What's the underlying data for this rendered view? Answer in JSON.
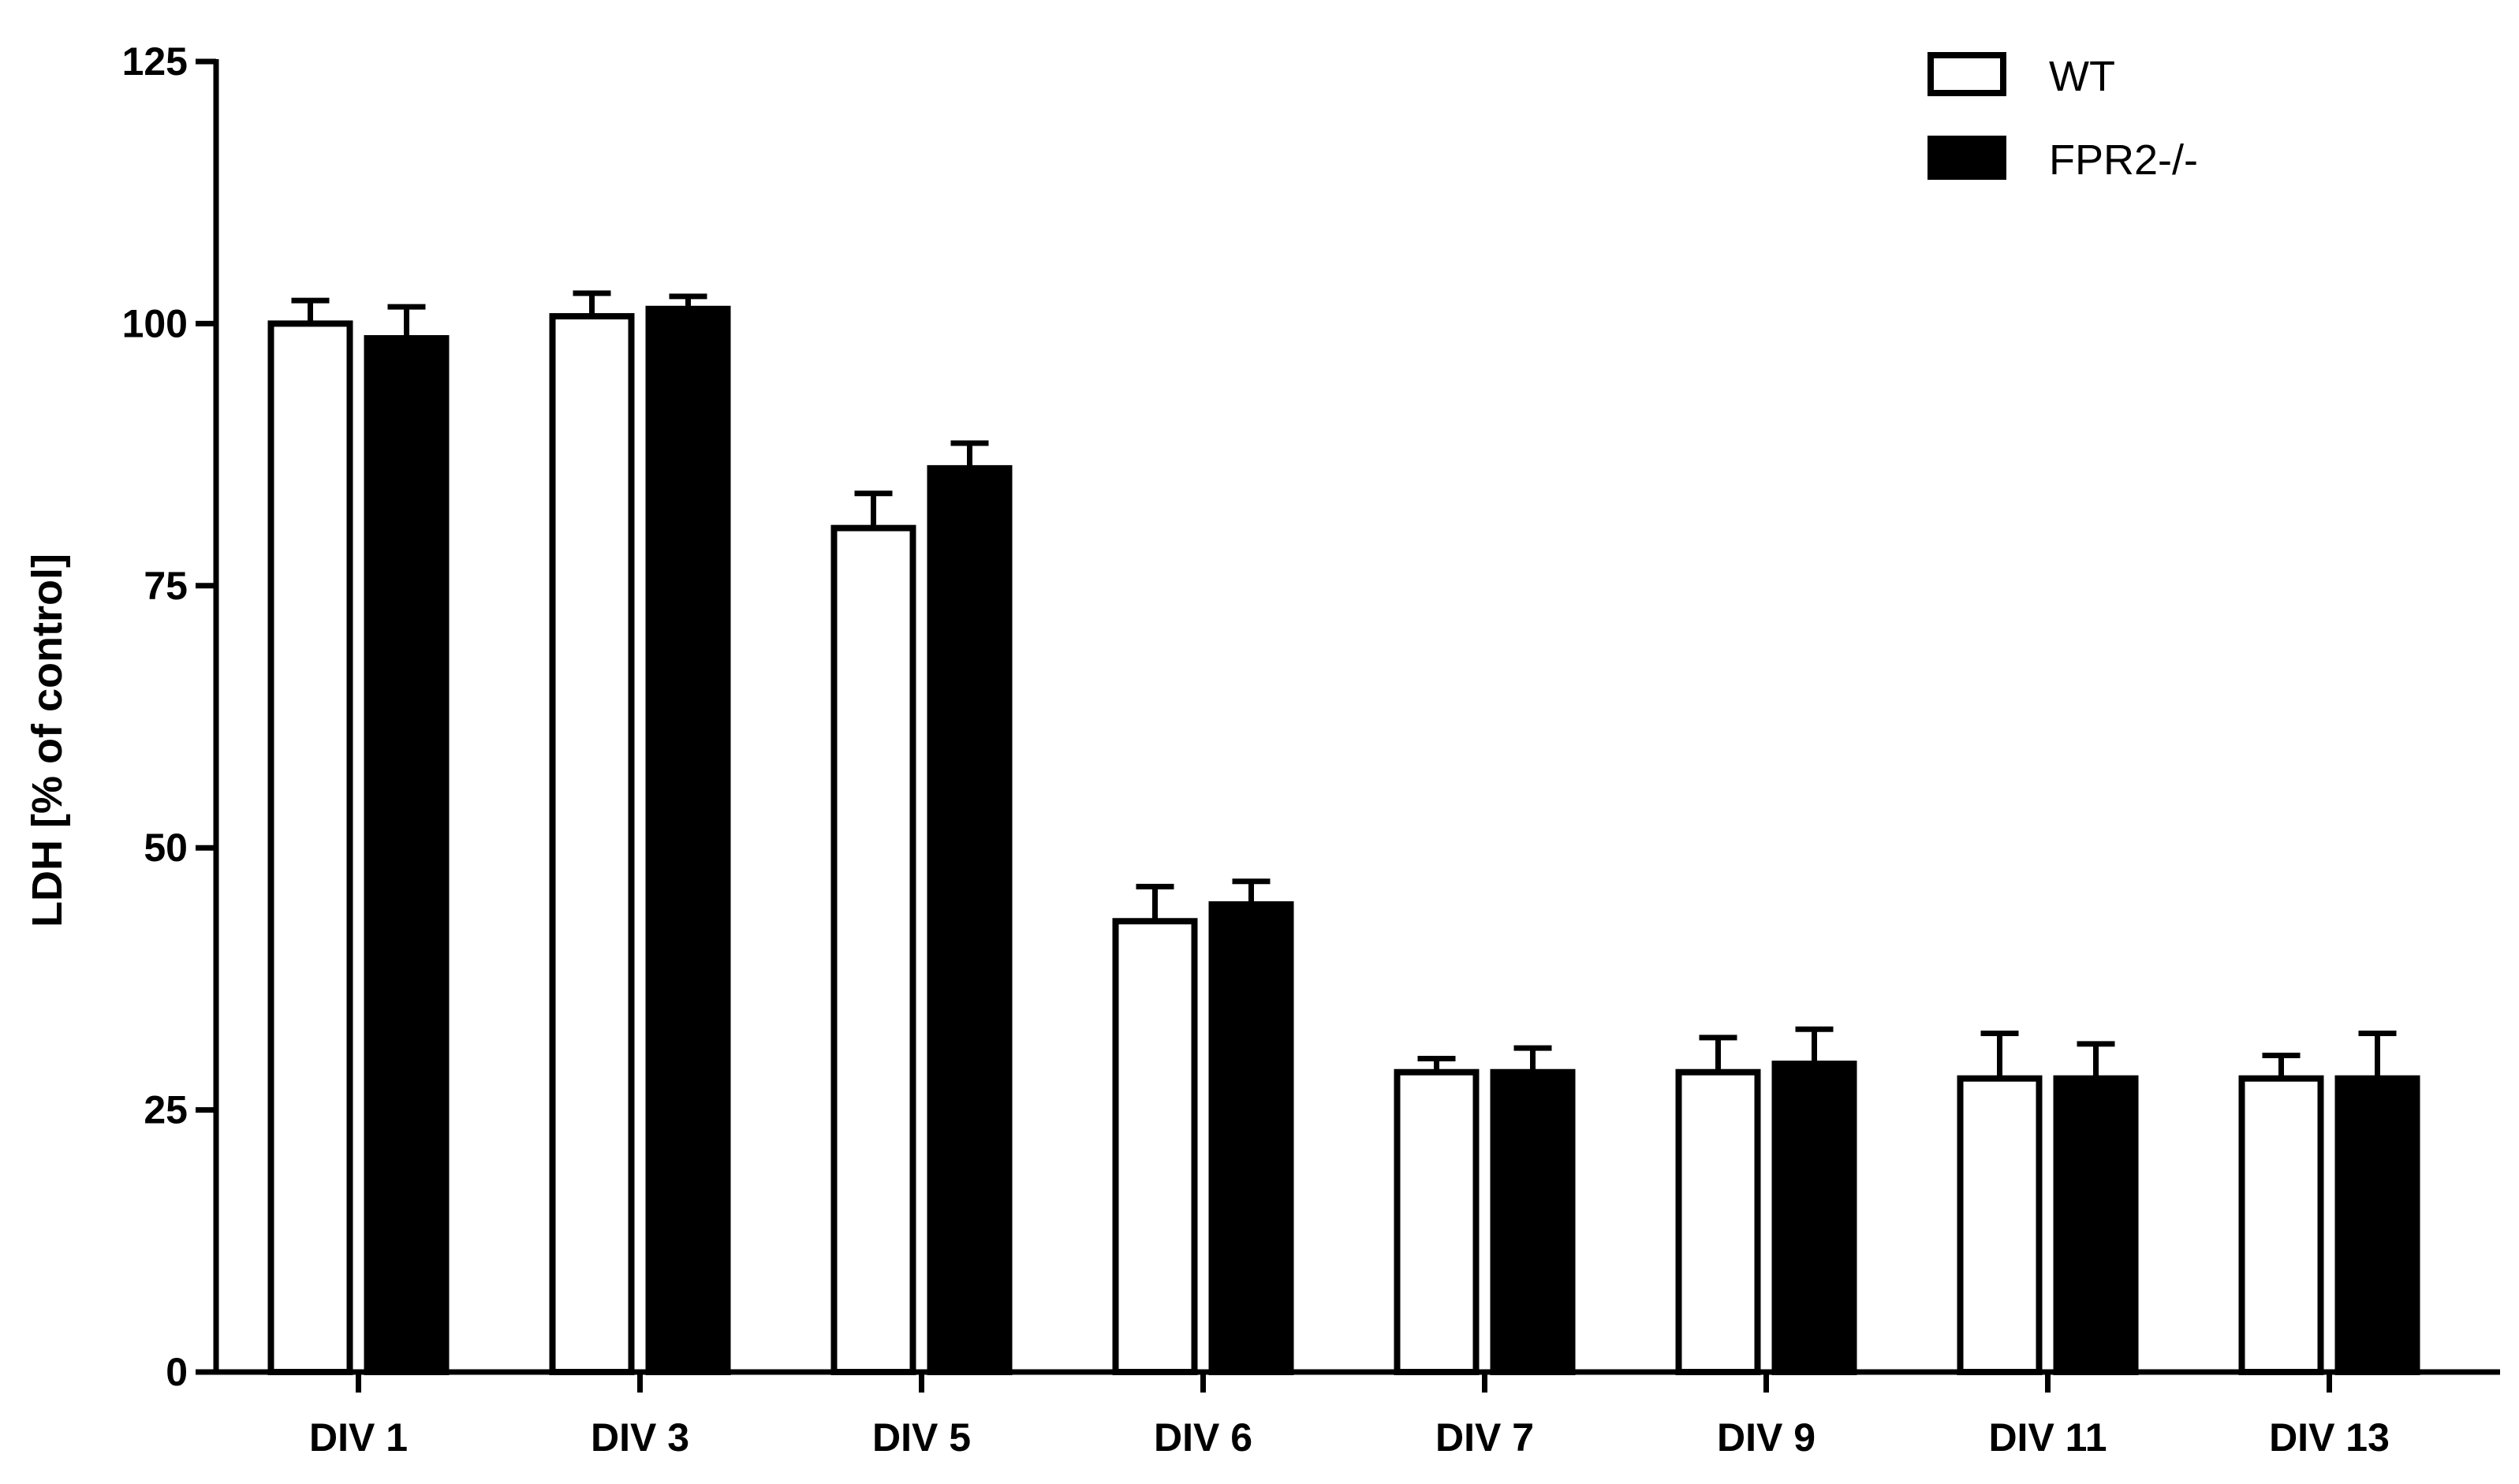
{
  "chart_data": {
    "type": "bar",
    "title": "",
    "xlabel": "",
    "ylabel": "LDH [% of control]",
    "ylim": [
      0,
      125
    ],
    "yticks": [
      0,
      25,
      50,
      75,
      100,
      125
    ],
    "ytick_labels": [
      "0",
      "25",
      "50",
      "75",
      "100",
      "125"
    ],
    "categories": [
      "DIV 1",
      "DIV 3",
      "DIV 5",
      "DIV 6",
      "DIV 7",
      "DIV 9",
      "DIV 11",
      "DIV 13"
    ],
    "series": [
      {
        "name": "WT",
        "fill": "#ffffff",
        "stroke": "#000000",
        "values": [
          100,
          100.7,
          80.5,
          43,
          28.6,
          28.6,
          28,
          28
        ],
        "errors": [
          2.2,
          2.2,
          3.3,
          3.3,
          1.3,
          3.3,
          4.3,
          2.2
        ]
      },
      {
        "name": "FPR2-/-",
        "fill": "#000000",
        "stroke": "#000000",
        "values": [
          98.6,
          101.4,
          86.2,
          44.6,
          28.6,
          29.4,
          28,
          28
        ],
        "errors": [
          3.0,
          1.2,
          2.4,
          2.2,
          2.3,
          3.3,
          3.3,
          4.3
        ]
      }
    ],
    "legend_position": "top-right",
    "grid": false
  }
}
